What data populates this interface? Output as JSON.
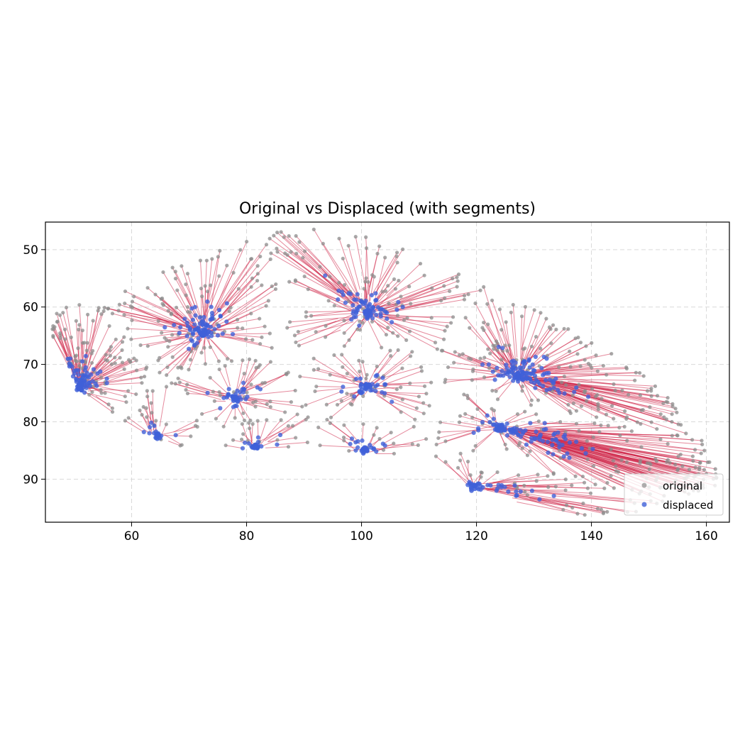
{
  "chart_data": {
    "type": "scatter",
    "title": "Original vs Displaced (with segments)",
    "xlabel": "",
    "ylabel": "",
    "xlim": [
      45,
      164
    ],
    "ylim": [
      97.5,
      45.2
    ],
    "y_inverted": true,
    "grid": true,
    "xticks": [
      60,
      80,
      100,
      120,
      140,
      160
    ],
    "yticks": [
      50,
      60,
      70,
      80,
      90
    ],
    "xtick_labels": [
      "60",
      "80",
      "100",
      "120",
      "140",
      "160"
    ],
    "ytick_labels": [
      "50",
      "60",
      "70",
      "80",
      "90"
    ],
    "legend": {
      "position": "lower-right",
      "entries": [
        "original",
        "displaced"
      ]
    },
    "colors": {
      "original": "#8c8c8c",
      "displaced": "#4060d8",
      "segment": "#d0284a",
      "grid": "#d9d9d9"
    },
    "series": [
      {
        "name": "original",
        "color": "#8c8c8c"
      },
      {
        "name": "displaced",
        "color": "#4060d8"
      }
    ],
    "clusters": [
      {
        "attractor": [
          51,
          74
        ],
        "fan_radius": 13
      },
      {
        "attractor": [
          64.5,
          82.5
        ],
        "fan_radius": 9
      },
      {
        "attractor": [
          72.5,
          64.5
        ],
        "fan_radius": 16
      },
      {
        "attractor": [
          78,
          76
        ],
        "fan_radius": 14
      },
      {
        "attractor": [
          81.5,
          84.5
        ],
        "fan_radius": 7
      },
      {
        "attractor": [
          101,
          61
        ],
        "fan_radius": 22
      },
      {
        "attractor": [
          101,
          74
        ],
        "fan_radius": 20
      },
      {
        "attractor": [
          100.5,
          85
        ],
        "fan_radius": 12
      },
      {
        "attractor": [
          119.5,
          91.5
        ],
        "fan_radius": 14
      },
      {
        "attractor": [
          124,
          81
        ],
        "fan_radius": 22
      },
      {
        "attractor": [
          127,
          72
        ],
        "fan_radius": 24
      }
    ],
    "original_points_count": 900,
    "note_extent": {
      "x": [
        46,
        162
      ],
      "y": [
        46,
        97
      ]
    }
  }
}
